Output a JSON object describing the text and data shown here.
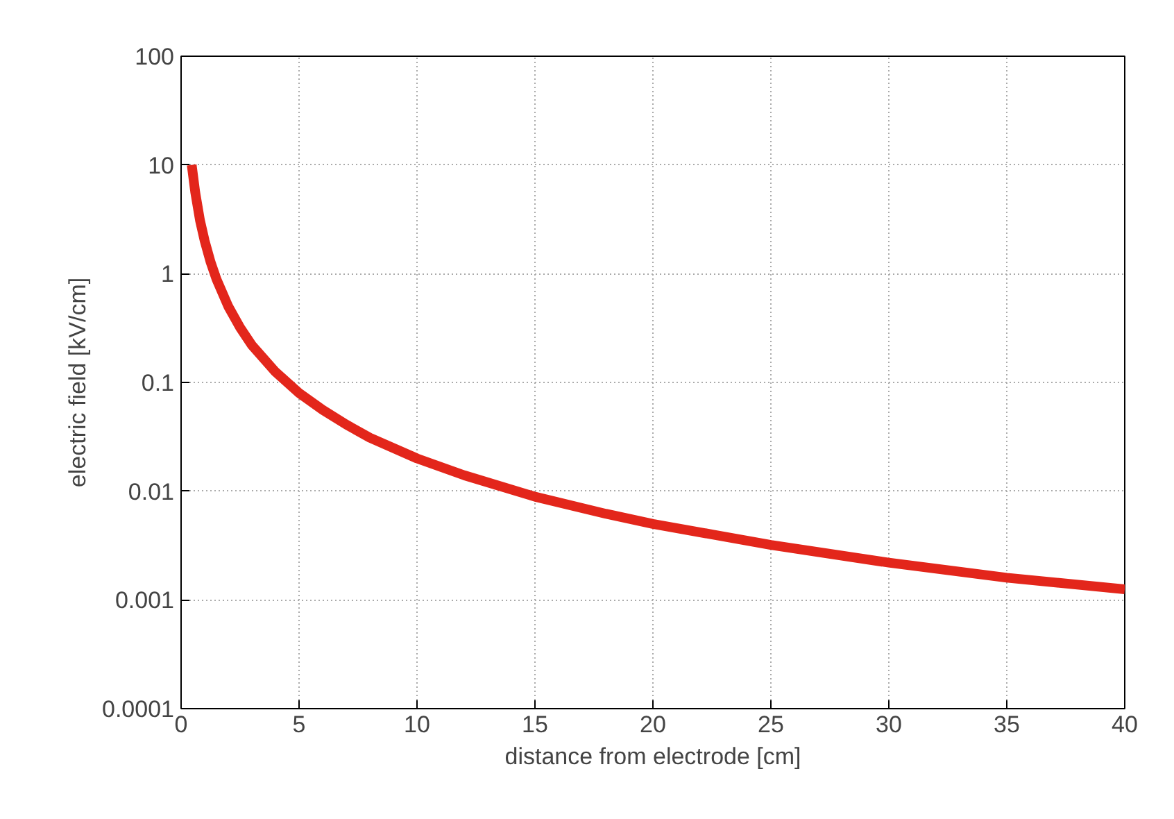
{
  "chart_data": {
    "type": "line",
    "xlabel": "distance from electrode [cm]",
    "ylabel": "electric field [kV/cm]",
    "log": "y",
    "grid": true,
    "marker": "none",
    "line_style": "solid",
    "xlim": [
      0,
      40
    ],
    "xticks": [
      0,
      5,
      10,
      15,
      20,
      25,
      30,
      35,
      40
    ],
    "ylim": [
      0.0001,
      100
    ],
    "yticks": [
      {
        "value": 0.0001,
        "label": "0.0001"
      },
      {
        "value": 0.001,
        "label": "0.001"
      },
      {
        "value": 0.01,
        "label": "0.01"
      },
      {
        "value": 0.1,
        "label": "0.1"
      },
      {
        "value": 1,
        "label": "1"
      },
      {
        "value": 10,
        "label": "10"
      },
      {
        "value": 100,
        "label": "100"
      }
    ],
    "series": [
      {
        "color": "#e3261b",
        "x": [
          0.45,
          0.6,
          0.8,
          1,
          1.25,
          1.5,
          2,
          2.5,
          3,
          4,
          5,
          6,
          7,
          8,
          10,
          12,
          15,
          18,
          20,
          25,
          30,
          35,
          40
        ],
        "values": [
          10,
          5.6,
          3.1,
          2,
          1.28,
          0.89,
          0.5,
          0.32,
          0.22,
          0.125,
          0.08,
          0.056,
          0.041,
          0.031,
          0.02,
          0.014,
          0.0089,
          0.0062,
          0.005,
          0.0032,
          0.0022,
          0.0016,
          0.00125
        ]
      }
    ]
  }
}
